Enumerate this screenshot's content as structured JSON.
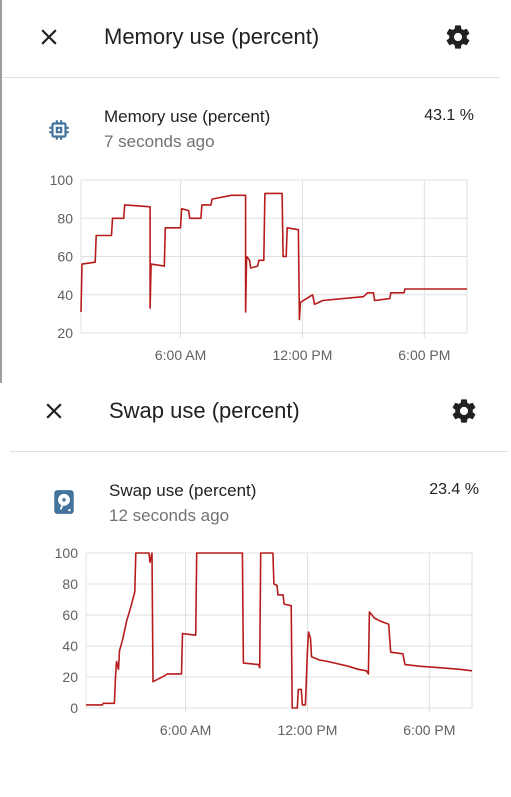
{
  "colors": {
    "line": "#b71c1c",
    "grid": "#e0e0e0",
    "icon_blue": "#44739e",
    "text_secondary": "#727272"
  },
  "memory_dialog": {
    "title": "Memory use (percent)",
    "close_icon": "close-icon",
    "settings_icon": "gear-icon",
    "entity": {
      "icon": "memory-chip-icon",
      "name": "Memory use (percent)",
      "last_changed": "7 seconds ago",
      "state": "43.1 %"
    }
  },
  "swap_dialog": {
    "title": "Swap use (percent)",
    "close_icon": "close-icon",
    "settings_icon": "gear-icon",
    "entity": {
      "icon": "harddisk-icon",
      "name": "Swap use (percent)",
      "last_changed": "12 seconds ago",
      "state": "23.4 %"
    }
  },
  "chart_data": [
    {
      "type": "line",
      "series_name": "Memory use (percent)",
      "ylim": [
        20,
        100
      ],
      "y_ticks": [
        "100",
        "80",
        "60",
        "40",
        "20"
      ],
      "x_ticks": [
        "6:00 AM",
        "12:00 PM",
        "6:00 PM"
      ],
      "grid": true,
      "x_hours_range": [
        1.1,
        20.1
      ],
      "points": [
        [
          1.1,
          31
        ],
        [
          1.15,
          56
        ],
        [
          1.8,
          57
        ],
        [
          1.85,
          71
        ],
        [
          2.6,
          71
        ],
        [
          2.65,
          80
        ],
        [
          3.2,
          80
        ],
        [
          3.25,
          87
        ],
        [
          4.5,
          86
        ],
        [
          4.5,
          33
        ],
        [
          4.55,
          56
        ],
        [
          5.2,
          55
        ],
        [
          5.25,
          75
        ],
        [
          6.0,
          75
        ],
        [
          6.05,
          85
        ],
        [
          6.4,
          84
        ],
        [
          6.45,
          80
        ],
        [
          7.0,
          80
        ],
        [
          7.05,
          87
        ],
        [
          7.5,
          87
        ],
        [
          7.55,
          90
        ],
        [
          8.5,
          92
        ],
        [
          9.2,
          92
        ],
        [
          9.2,
          31
        ],
        [
          9.25,
          60
        ],
        [
          9.4,
          58
        ],
        [
          9.45,
          54
        ],
        [
          9.8,
          55
        ],
        [
          9.85,
          58
        ],
        [
          10.1,
          58
        ],
        [
          10.15,
          93
        ],
        [
          11.0,
          93
        ],
        [
          11.05,
          60
        ],
        [
          11.2,
          60
        ],
        [
          11.25,
          75
        ],
        [
          11.8,
          74
        ],
        [
          11.85,
          27
        ],
        [
          11.9,
          36
        ],
        [
          12.2,
          38
        ],
        [
          12.5,
          40
        ],
        [
          12.6,
          35
        ],
        [
          12.8,
          36
        ],
        [
          13.0,
          37
        ],
        [
          14.0,
          38
        ],
        [
          15.0,
          39
        ],
        [
          15.2,
          41
        ],
        [
          15.5,
          41
        ],
        [
          15.55,
          37
        ],
        [
          16.3,
          38
        ],
        [
          16.35,
          41
        ],
        [
          17.0,
          41
        ],
        [
          17.05,
          43
        ],
        [
          18.0,
          43
        ],
        [
          19.0,
          43
        ],
        [
          20.1,
          43
        ]
      ]
    },
    {
      "type": "line",
      "series_name": "Swap use (percent)",
      "ylim": [
        0,
        100
      ],
      "y_ticks": [
        "100",
        "80",
        "60",
        "40",
        "20",
        "0"
      ],
      "x_ticks": [
        "6:00 AM",
        "12:00 PM",
        "6:00 PM"
      ],
      "grid": true,
      "x_hours_range": [
        1.1,
        20.1
      ],
      "points": [
        [
          1.1,
          2
        ],
        [
          1.9,
          2
        ],
        [
          1.95,
          3
        ],
        [
          2.5,
          3
        ],
        [
          2.55,
          20
        ],
        [
          2.6,
          30
        ],
        [
          2.7,
          25
        ],
        [
          2.75,
          37
        ],
        [
          2.9,
          44
        ],
        [
          3.1,
          56
        ],
        [
          3.3,
          65
        ],
        [
          3.5,
          75
        ],
        [
          3.55,
          100
        ],
        [
          4.2,
          100
        ],
        [
          4.25,
          94
        ],
        [
          4.35,
          100
        ],
        [
          4.4,
          17
        ],
        [
          5.0,
          21
        ],
        [
          5.1,
          22
        ],
        [
          5.8,
          22
        ],
        [
          5.85,
          48
        ],
        [
          6.5,
          47
        ],
        [
          6.55,
          100
        ],
        [
          7.0,
          100
        ],
        [
          7.5,
          100
        ],
        [
          8.5,
          100
        ],
        [
          8.8,
          100
        ],
        [
          8.85,
          29
        ],
        [
          9.6,
          28
        ],
        [
          9.65,
          26
        ],
        [
          9.7,
          100
        ],
        [
          10.3,
          100
        ],
        [
          10.35,
          80
        ],
        [
          10.5,
          79
        ],
        [
          10.55,
          73
        ],
        [
          10.8,
          73
        ],
        [
          10.85,
          67
        ],
        [
          11.2,
          66
        ],
        [
          11.25,
          0
        ],
        [
          11.5,
          0
        ],
        [
          11.55,
          12
        ],
        [
          11.7,
          12
        ],
        [
          11.75,
          2
        ],
        [
          11.9,
          2
        ],
        [
          12.0,
          36
        ],
        [
          12.05,
          49
        ],
        [
          12.15,
          45
        ],
        [
          12.2,
          33
        ],
        [
          12.6,
          31
        ],
        [
          13.0,
          30
        ],
        [
          14.0,
          27
        ],
        [
          14.5,
          25
        ],
        [
          14.9,
          24
        ],
        [
          15.0,
          22
        ],
        [
          15.05,
          62
        ],
        [
          15.3,
          58
        ],
        [
          15.6,
          56
        ],
        [
          16.0,
          54
        ],
        [
          16.1,
          36
        ],
        [
          16.7,
          35
        ],
        [
          16.8,
          28
        ],
        [
          17.5,
          27
        ],
        [
          18.5,
          26
        ],
        [
          19.5,
          25
        ],
        [
          20.1,
          24
        ]
      ]
    }
  ]
}
